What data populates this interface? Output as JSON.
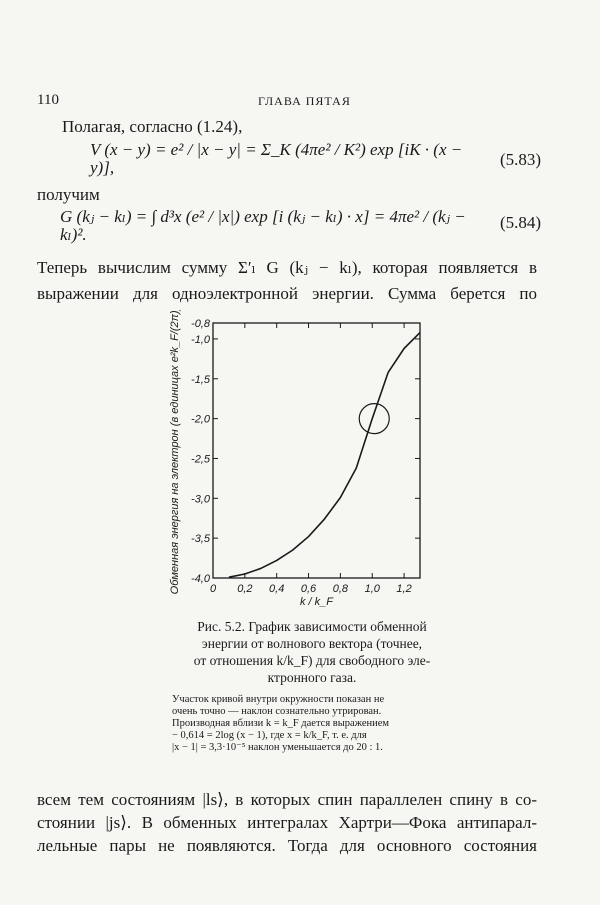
{
  "header": {
    "page_number": "110",
    "running_title": "ГЛАВА ПЯТАЯ"
  },
  "text": {
    "line1": "Полагая, согласно (1.24),",
    "eq583": "V (x − y) = e² / |x − y| = Σ_K (4πe² / K²) exp [iK · (x − y)],",
    "eq583_label": "(5.83)",
    "line2": "получим",
    "eq584": "G (kⱼ − kₗ) = ∫ d³x (e² / |x|) exp [i (kⱼ − kₗ) · x] = 4πe² / (kⱼ − kₗ)².",
    "eq584_label": "(5.84)",
    "line3": "Теперь вычислим сумму Σ′ₗ G (kⱼ − kₗ), которая появляется в",
    "line4": "выражении для одноэлектронной энергии. Сумма берется по",
    "line5": "всем тем состояниям |ls⟩, в которых спин параллелен спину в со-",
    "line6": "стоянии |js⟩. В обменных интегралах Хартри—Фока антипарал-",
    "line7": "лельные пары не появляются. Тогда для основного состояния"
  },
  "figure": {
    "caption_lines": [
      "Рис. 5.2. График зависимости обменной",
      "энергии от волнового вектора (точнее,",
      "от отношения k/k_F) для свободного эле-",
      "ктронного газа."
    ],
    "note_lines": [
      "Участок кривой внутри окружности показан не",
      "очень точно — наклон сознательно утрирован.",
      "Производная вблизи k = k_F дается выражением",
      "− 0,614 = 2log (x − 1), где x = k/k_F, т. е. для",
      "|x − 1| = 3,3·10⁻⁵ наклон уменьшается до 20 : 1."
    ]
  },
  "chart_data": {
    "type": "line",
    "xlabel": "k / k_F",
    "ylabel": "Обменная энергия на электрон (в единицах e²k_F/(2π))",
    "xlim": [
      0,
      1.3
    ],
    "ylim": [
      -4.0,
      -0.8
    ],
    "xticks": [
      "0",
      "0,2",
      "0,4",
      "0,6",
      "0,8",
      "1,0",
      "1,2"
    ],
    "xtick_values": [
      0,
      0.2,
      0.4,
      0.6,
      0.8,
      1.0,
      1.2
    ],
    "yticks": [
      "-0,8",
      "-1,0",
      "-1,5",
      "-2,0",
      "-2,5",
      "-3,0",
      "-3,5",
      "-4,0"
    ],
    "ytick_values": [
      -0.8,
      -1.0,
      -1.5,
      -2.0,
      -2.5,
      -3.0,
      -3.5,
      -4.0
    ],
    "grid": false,
    "series": [
      {
        "x": [
          0.1,
          0.2,
          0.3,
          0.4,
          0.5,
          0.6,
          0.7,
          0.8,
          0.9,
          1.0,
          1.1,
          1.2,
          1.3
        ],
        "y": [
          -3.99,
          -3.95,
          -3.88,
          -3.78,
          -3.65,
          -3.48,
          -3.26,
          -2.99,
          -2.62,
          -2.0,
          -1.42,
          -1.12,
          -0.92
        ]
      }
    ],
    "annotation": {
      "type": "circle",
      "center": [
        1.0,
        -2.0
      ]
    }
  }
}
